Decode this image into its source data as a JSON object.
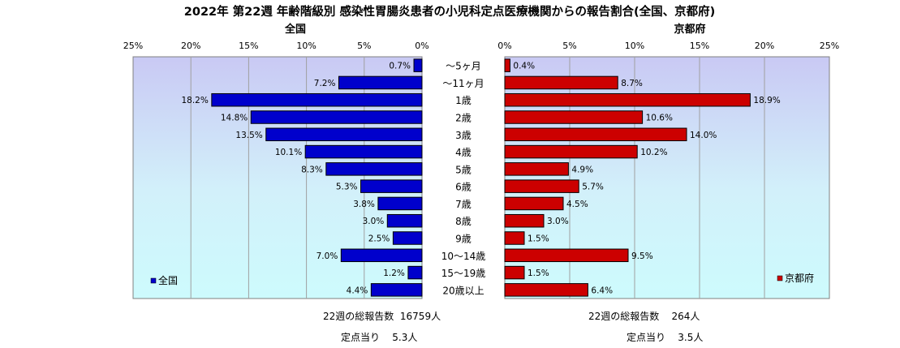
{
  "chart_data": {
    "type": "bar",
    "orientation": "horizontal",
    "title": "2022年 第22週  年齢階級別 感染性胃腸炎患者の小児科定点医療機関からの報告割合(全国、京都府)",
    "categories": [
      "～5ヶ月",
      "～11ヶ月",
      "1歳",
      "2歳",
      "3歳",
      "4歳",
      "5歳",
      "6歳",
      "7歳",
      "8歳",
      "9歳",
      "10～14歳",
      "15～19歳",
      "20歳以上"
    ],
    "series": [
      {
        "name": "全国",
        "color": "#0000cc",
        "values": [
          0.7,
          7.2,
          18.2,
          14.8,
          13.5,
          10.1,
          8.3,
          5.3,
          3.8,
          3.0,
          2.5,
          7.0,
          1.2,
          4.4
        ],
        "labels": [
          "0.7%",
          "7.2%",
          "18.2%",
          "14.8%",
          "13.5%",
          "10.1%",
          "8.3%",
          "5.3%",
          "3.8%",
          "3.0%",
          "2.5%",
          "7.0%",
          "1.2%",
          "4.4%"
        ]
      },
      {
        "name": "京都府",
        "color": "#cc0000",
        "values": [
          0.4,
          8.7,
          18.9,
          10.6,
          14.0,
          10.2,
          4.9,
          5.7,
          4.5,
          3.0,
          1.5,
          9.5,
          1.5,
          6.4
        ],
        "labels": [
          "0.4%",
          "8.7%",
          "18.9%",
          "10.6%",
          "14.0%",
          "10.2%",
          "4.9%",
          "5.7%",
          "4.5%",
          "3.0%",
          "1.5%",
          "9.5%",
          "1.5%",
          "6.4%"
        ]
      }
    ],
    "panel_titles": {
      "left": "全国",
      "right": "京都府"
    },
    "xlim": [
      0,
      25
    ],
    "left_ticks": [
      "25%",
      "20%",
      "15%",
      "10%",
      "5%",
      "0%"
    ],
    "right_ticks": [
      "0%",
      "5%",
      "10%",
      "15%",
      "20%",
      "25%"
    ],
    "grid": true,
    "legend": {
      "left": "全国",
      "right": "京都府",
      "placement": "bottom-left of each panel"
    }
  },
  "footer": {
    "left_total": "22週の総報告数  16759人",
    "left_per_site": "定点当り    5.3人",
    "right_total": "22週の総報告数    264人",
    "right_per_site": "定点当り    3.5人"
  }
}
